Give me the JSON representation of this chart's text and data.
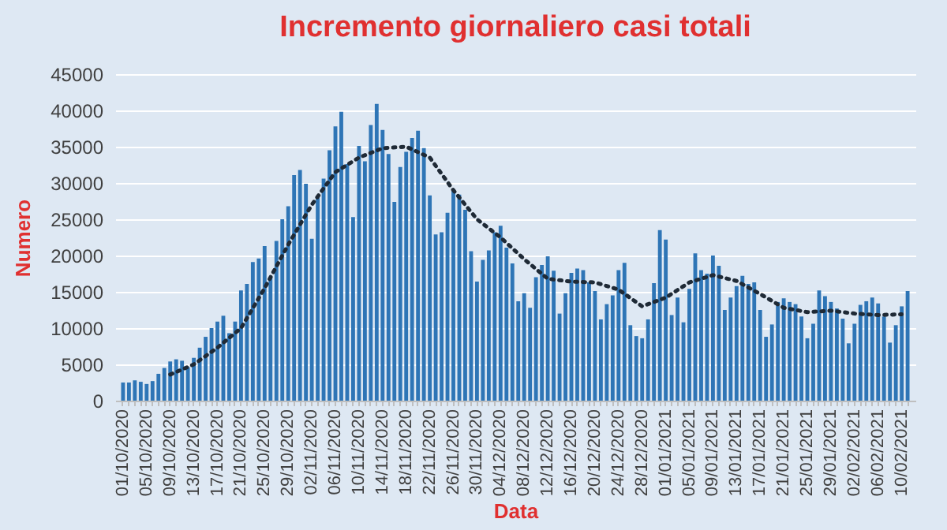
{
  "chart_data": {
    "type": "bar",
    "title": "Incremento giornaliero casi totali",
    "xlabel": "Data",
    "ylabel": "Numero",
    "categories": [
      "01/10/2020",
      null,
      null,
      null,
      "05/10/2020",
      null,
      null,
      null,
      "09/10/2020",
      null,
      null,
      null,
      "13/10/2020",
      null,
      null,
      null,
      "17/10/2020",
      null,
      null,
      null,
      "21/10/2020",
      null,
      null,
      null,
      "25/10/2020",
      null,
      null,
      null,
      "29/10/2020",
      null,
      null,
      null,
      "02/11/2020",
      null,
      null,
      null,
      "06/11/2020",
      null,
      null,
      null,
      "10/11/2020",
      null,
      null,
      null,
      "14/11/2020",
      null,
      null,
      null,
      "18/11/2020",
      null,
      null,
      null,
      "22/11/2020",
      null,
      null,
      null,
      "26/11/2020",
      null,
      null,
      null,
      "30/11/2020",
      null,
      null,
      null,
      "04/12/2020",
      null,
      null,
      null,
      "08/12/2020",
      null,
      null,
      null,
      "12/12/2020",
      null,
      null,
      null,
      "16/12/2020",
      null,
      null,
      null,
      "20/12/2020",
      null,
      null,
      null,
      "24/12/2020",
      null,
      null,
      null,
      "28/12/2020",
      null,
      null,
      null,
      "01/01/2021",
      null,
      null,
      null,
      "05/01/2021",
      null,
      null,
      null,
      "09/01/2021",
      null,
      null,
      null,
      "13/01/2021",
      null,
      null,
      null,
      "17/01/2021",
      null,
      null,
      null,
      "21/01/2021",
      null,
      null,
      null,
      "25/01/2021",
      null,
      null,
      null,
      "29/01/2021",
      null,
      null,
      null,
      "02/02/2021",
      null,
      null,
      null,
      "06/02/2021",
      null,
      null,
      null,
      "10/02/2021",
      null
    ],
    "series": [
      {
        "color": "#2e75b6",
        "values": [
          2500,
          2500,
          2800,
          2600,
          2300,
          2700,
          3700,
          4500,
          5400,
          5700,
          5500,
          4600,
          5900,
          7300,
          8800,
          10000,
          10900,
          11700,
          9300,
          10900,
          15200,
          16100,
          19100,
          19600,
          21300,
          17000,
          22000,
          25000,
          26800,
          31100,
          31800,
          29900,
          22300,
          28200,
          30600,
          34500,
          37800,
          39800,
          32600,
          25300,
          35100,
          33000,
          38000,
          40900,
          37300,
          34000,
          27400,
          32200,
          34300,
          36200,
          37200,
          34800,
          28300,
          22900,
          23200,
          25900,
          29000,
          28400,
          26300,
          20600,
          16400,
          19400,
          20700,
          23200,
          24100,
          21100,
          18900,
          13700,
          14800,
          12800,
          17000,
          18700,
          19900,
          17900,
          12000,
          14800,
          17600,
          18200,
          18000,
          16300,
          15100,
          11200,
          13300,
          14500,
          18000,
          19000,
          10400,
          8900,
          8600,
          11200,
          16200,
          23500,
          22200,
          11800,
          14200,
          10800,
          15400,
          20300,
          18000,
          17500,
          20000,
          18600,
          12500,
          14200,
          15800,
          17200,
          16100,
          16300,
          12500,
          8800,
          10500,
          13600,
          14100,
          13600,
          13300,
          11600,
          8600,
          10600,
          15200,
          14400,
          13600,
          12700,
          11300,
          7900,
          10600,
          13200,
          13700,
          14200,
          13400,
          11600,
          8000,
          10400,
          13000,
          15100
        ]
      },
      {
        "type": "line",
        "color": "#1f2a36",
        "line_style": "dotted",
        "x": [
          "09/10/2020",
          "13/10/2020",
          "17/10/2020",
          "21/10/2020",
          "25/10/2020",
          "29/10/2020",
          "02/11/2020",
          "06/11/2020",
          "10/11/2020",
          "14/11/2020",
          "18/11/2020",
          "22/11/2020",
          "26/11/2020",
          "30/11/2020",
          "04/12/2020",
          "08/12/2020",
          "12/12/2020",
          "16/12/2020",
          "20/12/2020",
          "24/12/2020",
          "28/12/2020",
          "01/01/2021",
          "05/01/2021",
          "09/01/2021",
          "13/01/2021",
          "17/01/2021",
          "21/01/2021",
          "25/01/2021",
          "29/01/2021",
          "02/02/2021",
          "06/02/2021",
          "10/02/2021"
        ],
        "values": [
          3600,
          5000,
          7300,
          10000,
          15500,
          21500,
          27000,
          31500,
          33500,
          34800,
          35000,
          33500,
          29000,
          25000,
          22500,
          19500,
          16800,
          16400,
          16300,
          15300,
          13000,
          14200,
          16300,
          17300,
          16500,
          14700,
          12800,
          12200,
          12400,
          12000,
          11800,
          11900
        ]
      }
    ],
    "ylim": [
      0,
      45000
    ],
    "yticks": [
      0,
      5000,
      10000,
      15000,
      20000,
      25000,
      30000,
      35000,
      40000,
      45000
    ],
    "grid": "y"
  }
}
